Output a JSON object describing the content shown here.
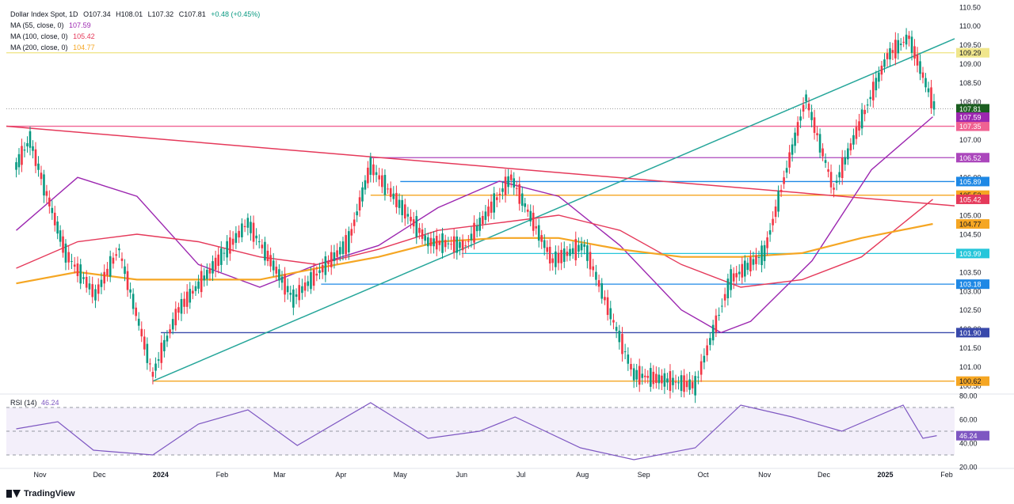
{
  "header": {
    "symbol": "Dollar Index Spot, 1D",
    "open": "O107.34",
    "high": "H108.01",
    "low": "L107.32",
    "close": "C107.81",
    "change": "+0.48 (+0.45%)"
  },
  "indicators": [
    {
      "label": "MA (55, close, 0)",
      "value": "107.59",
      "color": "#9c27b0"
    },
    {
      "label": "MA (100, close, 0)",
      "value": "105.42",
      "color": "#e5395a"
    },
    {
      "label": "MA (200, close, 0)",
      "value": "104.77",
      "color": "#f5a623"
    }
  ],
  "rsi": {
    "label": "RSI (14)",
    "value": "46.24"
  },
  "branding": {
    "name": "TradingView"
  },
  "chart_data": {
    "type": "line",
    "title": "Dollar Index Spot, 1D",
    "xlabel": "",
    "ylabel": "",
    "x_ticks": [
      "Nov",
      "Dec",
      "2024",
      "Feb",
      "Mar",
      "Apr",
      "May",
      "Jun",
      "Jul",
      "Aug",
      "Sep",
      "Oct",
      "Nov",
      "Dec",
      "2025",
      "Feb"
    ],
    "y_ticks": [
      "110.50",
      "110.00",
      "109.50",
      "109.00",
      "108.50",
      "108.00",
      "107.50",
      "107.00",
      "106.50",
      "106.00",
      "105.50",
      "105.00",
      "104.50",
      "104.00",
      "103.50",
      "103.00",
      "102.50",
      "102.00",
      "101.50",
      "101.00",
      "100.50"
    ],
    "ylim": [
      100.3,
      110.6
    ],
    "price_path": {
      "x": [
        "2023-10-20",
        "2023-10-27",
        "2023-11-03",
        "2023-11-14",
        "2023-11-29",
        "2023-12-11",
        "2023-12-28",
        "2024-01-10",
        "2024-02-02",
        "2024-02-14",
        "2024-03-08",
        "2024-04-05",
        "2024-04-16",
        "2024-05-15",
        "2024-06-03",
        "2024-06-26",
        "2024-07-17",
        "2024-08-02",
        "2024-08-27",
        "2024-09-27",
        "2024-10-15",
        "2024-11-01",
        "2024-11-22",
        "2024-12-06",
        "2025-01-02",
        "2025-01-13",
        "2025-01-27"
      ],
      "y": [
        106.3,
        107.0,
        105.8,
        104.0,
        102.9,
        104.1,
        100.8,
        102.5,
        104.0,
        104.8,
        102.8,
        104.3,
        106.3,
        104.3,
        104.2,
        106.0,
        103.8,
        104.2,
        100.8,
        100.5,
        103.3,
        104.0,
        108.1,
        105.7,
        109.2,
        109.7,
        107.7
      ]
    },
    "series": [
      {
        "name": "MA (55, close, 0)",
        "color": "#9c27b0",
        "x": [
          "2023-10-20",
          "2023-11-20",
          "2023-12-20",
          "2024-01-20",
          "2024-02-20",
          "2024-03-20",
          "2024-04-20",
          "2024-05-20",
          "2024-06-20",
          "2024-07-20",
          "2024-08-20",
          "2024-09-20",
          "2024-10-10",
          "2024-10-25",
          "2024-11-25",
          "2024-12-25",
          "2025-01-25"
        ],
        "y": [
          104.6,
          106.0,
          105.5,
          103.7,
          103.1,
          103.7,
          104.2,
          105.2,
          105.9,
          105.5,
          104.2,
          102.5,
          101.9,
          102.2,
          103.8,
          106.2,
          107.6
        ]
      },
      {
        "name": "MA (100, close, 0)",
        "color": "#e5395a",
        "x": [
          "2023-10-20",
          "2023-11-20",
          "2023-12-20",
          "2024-01-20",
          "2024-02-20",
          "2024-03-20",
          "2024-04-20",
          "2024-05-20",
          "2024-06-20",
          "2024-07-20",
          "2024-08-20",
          "2024-09-20",
          "2024-10-20",
          "2024-11-20",
          "2024-12-20",
          "2025-01-25"
        ],
        "y": [
          103.6,
          104.3,
          104.5,
          104.3,
          103.9,
          103.7,
          104.1,
          104.6,
          104.8,
          105.0,
          104.6,
          103.7,
          103.1,
          103.3,
          103.9,
          105.42
        ]
      },
      {
        "name": "MA (200, close, 0)",
        "color": "#f5a623",
        "x": [
          "2023-10-20",
          "2023-11-20",
          "2023-12-20",
          "2024-01-20",
          "2024-02-20",
          "2024-03-20",
          "2024-04-20",
          "2024-05-20",
          "2024-06-20",
          "2024-07-20",
          "2024-08-20",
          "2024-09-20",
          "2024-10-20",
          "2024-11-20",
          "2024-12-20",
          "2025-01-25"
        ],
        "y": [
          103.2,
          103.5,
          103.3,
          103.3,
          103.3,
          103.6,
          103.9,
          104.3,
          104.4,
          104.4,
          104.1,
          103.9,
          103.9,
          104.0,
          104.4,
          104.77
        ]
      }
    ],
    "horizontal_levels": [
      {
        "value": 109.29,
        "label": "109.29",
        "color": "#f0e68c",
        "from": "2023-10-15"
      },
      {
        "value": 107.35,
        "label": "107.35",
        "color": "#f06292",
        "from": "2023-10-15"
      },
      {
        "value": 106.52,
        "label": "106.52",
        "color": "#ab47bc",
        "from": "2024-04-16"
      },
      {
        "value": 105.89,
        "label": "105.89",
        "color": "#1e88e5",
        "from": "2024-05-01"
      },
      {
        "value": 105.53,
        "label": "105.53",
        "color": "#f5a623",
        "from": "2024-04-16"
      },
      {
        "value": 103.99,
        "label": "103.99",
        "color": "#26c6da",
        "from": "2024-06-01"
      },
      {
        "value": 103.18,
        "label": "103.18",
        "color": "#1e88e5",
        "from": "2024-03-22"
      },
      {
        "value": 101.9,
        "label": "101.90",
        "color": "#3949ab",
        "from": "2024-01-01"
      },
      {
        "value": 100.62,
        "label": "100.62",
        "color": "#f5a623",
        "from": "2023-12-28"
      }
    ],
    "price_labels": [
      {
        "value": 107.81,
        "label": "107.81",
        "color": "#1b5e20"
      },
      {
        "value": 107.59,
        "label": "107.59",
        "color": "#9c27b0"
      },
      {
        "value": 105.42,
        "label": "105.42",
        "color": "#e5395a"
      },
      {
        "value": 104.77,
        "label": "104.77",
        "color": "#f5a623"
      }
    ],
    "trendlines": [
      {
        "color": "#26a69a",
        "x1": "2023-12-28",
        "y1": 100.62,
        "x2": "2025-02-05",
        "y2": 109.66
      },
      {
        "color": "#e5395a",
        "x1": "2023-10-15",
        "y1": 107.35,
        "x2": "2025-02-05",
        "y2": 105.25
      }
    ],
    "rsi": {
      "y_ticks": [
        "80.00",
        "60.00",
        "40.00",
        "20.00"
      ],
      "ylim": [
        20,
        80
      ],
      "levels": [
        70,
        50,
        30
      ],
      "x": [
        "2023-10-20",
        "2023-11-10",
        "2023-11-28",
        "2023-12-28",
        "2024-01-20",
        "2024-02-14",
        "2024-03-10",
        "2024-04-16",
        "2024-05-15",
        "2024-06-10",
        "2024-06-28",
        "2024-07-31",
        "2024-08-27",
        "2024-09-27",
        "2024-10-20",
        "2024-11-15",
        "2024-12-10",
        "2025-01-10",
        "2025-01-20",
        "2025-01-27"
      ],
      "y": [
        52,
        58,
        34,
        30,
        56,
        68,
        38,
        74,
        44,
        50,
        62,
        36,
        26,
        36,
        72,
        62,
        50,
        72,
        44,
        46.24
      ]
    }
  }
}
